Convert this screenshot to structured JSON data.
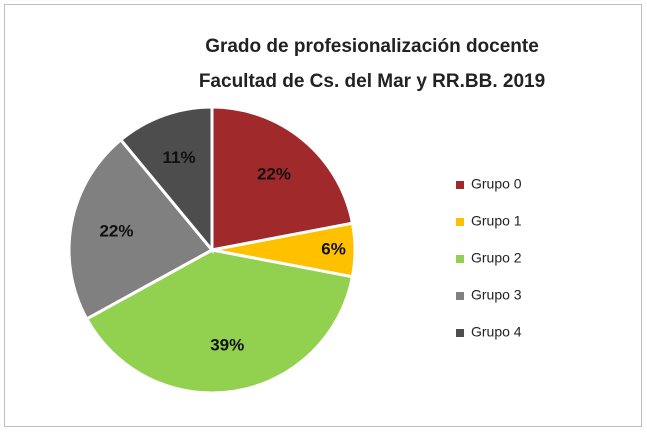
{
  "chart_data": {
    "type": "pie",
    "title": [
      "Grado de profesionalización docente",
      "Facultad de Cs. del Mar y RR.BB.  2019"
    ],
    "categories": [
      "Grupo 0",
      "Grupo 1",
      "Grupo 2",
      "Grupo 3",
      "Grupo 4"
    ],
    "values": [
      22,
      6,
      39,
      22,
      11
    ],
    "value_labels": [
      "22%",
      "6%",
      "39%",
      "22%",
      "11%"
    ],
    "colors": [
      "#a0292b",
      "#ffc000",
      "#92d050",
      "#808080",
      "#4d4d4d"
    ],
    "legend": "right"
  }
}
